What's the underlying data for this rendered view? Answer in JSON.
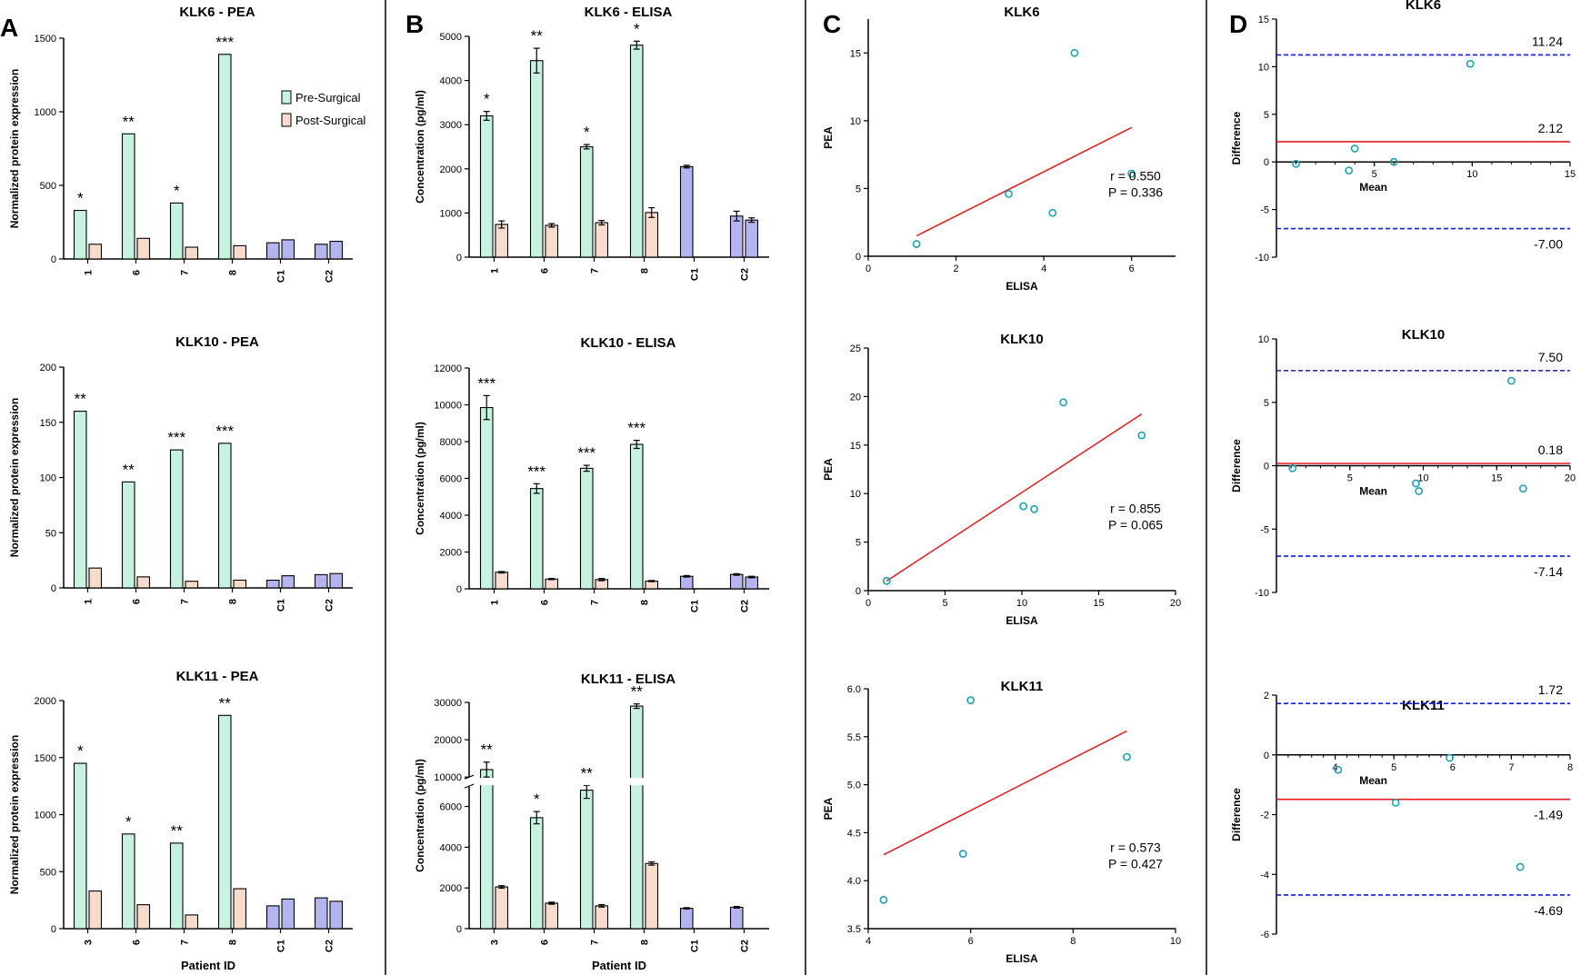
{
  "figure": {
    "panel_letters": [
      "A",
      "B",
      "C",
      "D"
    ],
    "legend": {
      "pre": "Pre-Surgical",
      "post": "Post-Surgical"
    },
    "xlabel_bottom": "Patient ID",
    "colors": {
      "pre": "#c6f2df",
      "post": "#f7dccd",
      "control": "#b4b4f0",
      "point": "#1da2b3",
      "fit": "#e31b1b",
      "loa": "#1520c8",
      "divider": "#000000"
    }
  },
  "chart_data": [
    {
      "id": "A1",
      "type": "bar",
      "title": "KLK6 - PEA",
      "xlabel": "",
      "ylabel": "Normalized protein expression",
      "ylim": [
        0,
        1500
      ],
      "yticks": [
        0,
        500,
        1000,
        1500
      ],
      "categories": [
        "1",
        "6",
        "7",
        "8",
        "C1",
        "C2"
      ],
      "series": [
        {
          "name": "Pre-Surgical",
          "values": [
            330,
            850,
            380,
            1390,
            110,
            100
          ]
        },
        {
          "name": "Post-Surgical",
          "values": [
            100,
            140,
            80,
            90,
            130,
            120
          ]
        }
      ],
      "control_categories": [
        "C1",
        "C2"
      ],
      "significance": [
        "*",
        "**",
        "*",
        "***",
        "",
        ""
      ],
      "legend": "top-right"
    },
    {
      "id": "A2",
      "type": "bar",
      "title": "KLK10 - PEA",
      "xlabel": "",
      "ylabel": "Normalized protein expression",
      "ylim": [
        0,
        200
      ],
      "yticks": [
        0,
        50,
        100,
        150,
        200
      ],
      "categories": [
        "1",
        "6",
        "7",
        "8",
        "C1",
        "C2"
      ],
      "series": [
        {
          "name": "Pre-Surgical",
          "values": [
            160,
            96,
            125,
            131,
            7,
            12
          ]
        },
        {
          "name": "Post-Surgical",
          "values": [
            18,
            10,
            6,
            7,
            11,
            13
          ]
        }
      ],
      "control_categories": [
        "C1",
        "C2"
      ],
      "significance": [
        "**",
        "**",
        "***",
        "***",
        "",
        ""
      ]
    },
    {
      "id": "A3",
      "type": "bar",
      "title": "KLK11 - PEA",
      "xlabel": "Patient ID",
      "ylabel": "Normalized protein expression",
      "ylim": [
        0,
        2000
      ],
      "yticks": [
        0,
        500,
        1000,
        1500,
        2000
      ],
      "categories": [
        "3",
        "6",
        "7",
        "8",
        "C1",
        "C2"
      ],
      "series": [
        {
          "name": "Pre-Surgical",
          "values": [
            1450,
            830,
            750,
            1870,
            200,
            270
          ]
        },
        {
          "name": "Post-Surgical",
          "values": [
            330,
            210,
            120,
            350,
            260,
            240
          ]
        }
      ],
      "control_categories": [
        "C1",
        "C2"
      ],
      "significance": [
        "*",
        "*",
        "**",
        "**",
        "",
        ""
      ]
    },
    {
      "id": "B1",
      "type": "bar",
      "title": "KLK6 - ELISA",
      "xlabel": "",
      "ylabel": "Concentration (pg/ml)",
      "ylim": [
        0,
        5000
      ],
      "yticks": [
        0,
        1000,
        2000,
        3000,
        4000,
        5000
      ],
      "categories": [
        "1",
        "6",
        "7",
        "8",
        "C1",
        "C2"
      ],
      "series": [
        {
          "name": "Pre-Surgical",
          "values": [
            3200,
            4450,
            2500,
            4800,
            2050,
            930
          ],
          "errors": [
            100,
            280,
            50,
            90,
            30,
            110
          ]
        },
        {
          "name": "Post-Surgical",
          "values": [
            740,
            720,
            780,
            1010,
            null,
            840
          ],
          "errors": [
            80,
            40,
            50,
            110,
            null,
            50
          ]
        }
      ],
      "control_categories": [
        "C1",
        "C2"
      ],
      "significance": [
        "*",
        "**",
        "*",
        "*",
        "",
        ""
      ]
    },
    {
      "id": "B2",
      "type": "bar",
      "title": "KLK10 - ELISA",
      "xlabel": "",
      "ylabel": "Concentration (pg/ml)",
      "ylim": [
        0,
        12000
      ],
      "yticks": [
        0,
        2000,
        4000,
        6000,
        8000,
        10000,
        12000
      ],
      "categories": [
        "1",
        "6",
        "7",
        "8",
        "C1",
        "C2"
      ],
      "series": [
        {
          "name": "Pre-Surgical",
          "values": [
            9850,
            5450,
            6550,
            7850,
            680,
            780
          ],
          "errors": [
            650,
            260,
            160,
            220,
            40,
            40
          ]
        },
        {
          "name": "Post-Surgical",
          "values": [
            900,
            530,
            500,
            420,
            null,
            640
          ],
          "errors": [
            40,
            30,
            60,
            30,
            null,
            40
          ]
        }
      ],
      "control_categories": [
        "C1",
        "C2"
      ],
      "significance": [
        "***",
        "***",
        "***",
        "***",
        "",
        ""
      ]
    },
    {
      "id": "B3",
      "type": "bar",
      "title": "KLK11 - ELISA",
      "xlabel": "Patient ID",
      "ylabel": "Concentration (pg/ml)",
      "ylim": [
        0,
        30000
      ],
      "yticks": [
        0,
        2000,
        4000,
        6000,
        10000,
        20000,
        30000
      ],
      "axis_break": [
        7000,
        10000
      ],
      "categories": [
        "3",
        "6",
        "7",
        "8",
        "C1",
        "C2"
      ],
      "series": [
        {
          "name": "Pre-Surgical",
          "values": [
            12000,
            5450,
            6800,
            29000,
            1000,
            1050
          ],
          "errors": [
            2000,
            300,
            400,
            600,
            30,
            40
          ]
        },
        {
          "name": "Post-Surgical",
          "values": [
            2050,
            1250,
            1120,
            3200,
            null,
            null
          ],
          "errors": [
            60,
            50,
            60,
            80,
            null,
            null
          ]
        }
      ],
      "control_categories": [
        "C1",
        "C2"
      ],
      "significance": [
        "**",
        "*",
        "**",
        "**",
        "",
        ""
      ]
    },
    {
      "id": "C1",
      "type": "scatter",
      "title": "KLK6",
      "xlabel": "ELISA",
      "ylabel": "PEA",
      "xlim": [
        0,
        7
      ],
      "ylim": [
        0,
        17.5
      ],
      "xticks": [
        0,
        2,
        4,
        6
      ],
      "yticks": [
        0,
        5,
        10,
        15
      ],
      "x": [
        1.1,
        3.2,
        4.2,
        4.7,
        6.0
      ],
      "y": [
        0.9,
        4.6,
        3.2,
        15.0,
        6.1
      ],
      "fit": [
        [
          1.1,
          1.5
        ],
        [
          6.0,
          9.5
        ]
      ],
      "stats": [
        "r = 0.550",
        "P = 0.336"
      ]
    },
    {
      "id": "C2",
      "type": "scatter",
      "title": "KLK10",
      "xlabel": "ELISA",
      "ylabel": "PEA",
      "xlim": [
        0,
        20
      ],
      "ylim": [
        0,
        25
      ],
      "xticks": [
        0,
        5,
        10,
        15,
        20
      ],
      "yticks": [
        0,
        5,
        10,
        15,
        20,
        25
      ],
      "x": [
        1.2,
        10.1,
        10.8,
        12.7,
        17.8
      ],
      "y": [
        1.0,
        8.7,
        8.4,
        19.4,
        16.0
      ],
      "fit": [
        [
          1.2,
          1.0
        ],
        [
          17.8,
          18.2
        ]
      ],
      "stats": [
        "r = 0.855",
        "P = 0.065"
      ]
    },
    {
      "id": "C3",
      "type": "scatter",
      "title": "KLK11",
      "xlabel": "ELISA",
      "ylabel": "PEA",
      "xlim": [
        4,
        10
      ],
      "ylim": [
        3.5,
        6.0
      ],
      "xticks": [
        4,
        6,
        8,
        10
      ],
      "yticks": [
        3.5,
        4.0,
        4.5,
        5.0,
        5.5,
        6.0
      ],
      "x": [
        4.3,
        5.85,
        6.0,
        9.05
      ],
      "y": [
        3.8,
        4.28,
        5.88,
        5.29
      ],
      "fit": [
        [
          4.3,
          4.27
        ],
        [
          9.05,
          5.56
        ]
      ],
      "stats": [
        "r = 0.573",
        "P = 0.427"
      ]
    },
    {
      "id": "D1",
      "type": "scatter",
      "title": "KLK6",
      "xlabel": "Mean",
      "ylabel": "Difference",
      "xlim": [
        0,
        15
      ],
      "ylim": [
        -10,
        15
      ],
      "xticks": [
        5,
        10,
        15
      ],
      "yticks": [
        -10,
        -5,
        0,
        5,
        10,
        15
      ],
      "x": [
        1.0,
        3.7,
        4.0,
        6.0,
        9.9
      ],
      "y": [
        -0.2,
        -0.9,
        1.4,
        0.0,
        10.3
      ],
      "bias": 2.12,
      "loa": [
        11.24,
        -7.0
      ],
      "labels": [
        "11.24",
        "2.12",
        "-7.00"
      ]
    },
    {
      "id": "D2",
      "type": "scatter",
      "title": "KLK10",
      "xlabel": "Mean",
      "ylabel": "Difference",
      "xlim": [
        0,
        20
      ],
      "ylim": [
        -10,
        10
      ],
      "xticks": [
        5,
        10,
        15,
        20
      ],
      "yticks": [
        -10,
        -5,
        0,
        5,
        10
      ],
      "x": [
        1.1,
        9.5,
        9.7,
        16.0,
        16.8
      ],
      "y": [
        -0.2,
        -1.4,
        -2.0,
        6.7,
        -1.8
      ],
      "bias": 0.18,
      "loa": [
        7.5,
        -7.14
      ],
      "labels": [
        "7.50",
        "0.18",
        "-7.14"
      ]
    },
    {
      "id": "D3",
      "type": "scatter",
      "title": "KLK11",
      "xlabel": "Mean",
      "ylabel": "Difference",
      "xlim": [
        3,
        8
      ],
      "ylim": [
        -6,
        2
      ],
      "xticks": [
        4,
        5,
        6,
        7,
        8
      ],
      "yticks": [
        -6,
        -4,
        -2,
        0,
        2
      ],
      "x": [
        4.05,
        5.03,
        5.95,
        7.15
      ],
      "y": [
        -0.5,
        -1.6,
        -0.1,
        -3.75
      ],
      "bias": -1.49,
      "loa": [
        1.72,
        -4.69
      ],
      "labels": [
        "1.72",
        "-1.49",
        "-4.69"
      ]
    }
  ]
}
